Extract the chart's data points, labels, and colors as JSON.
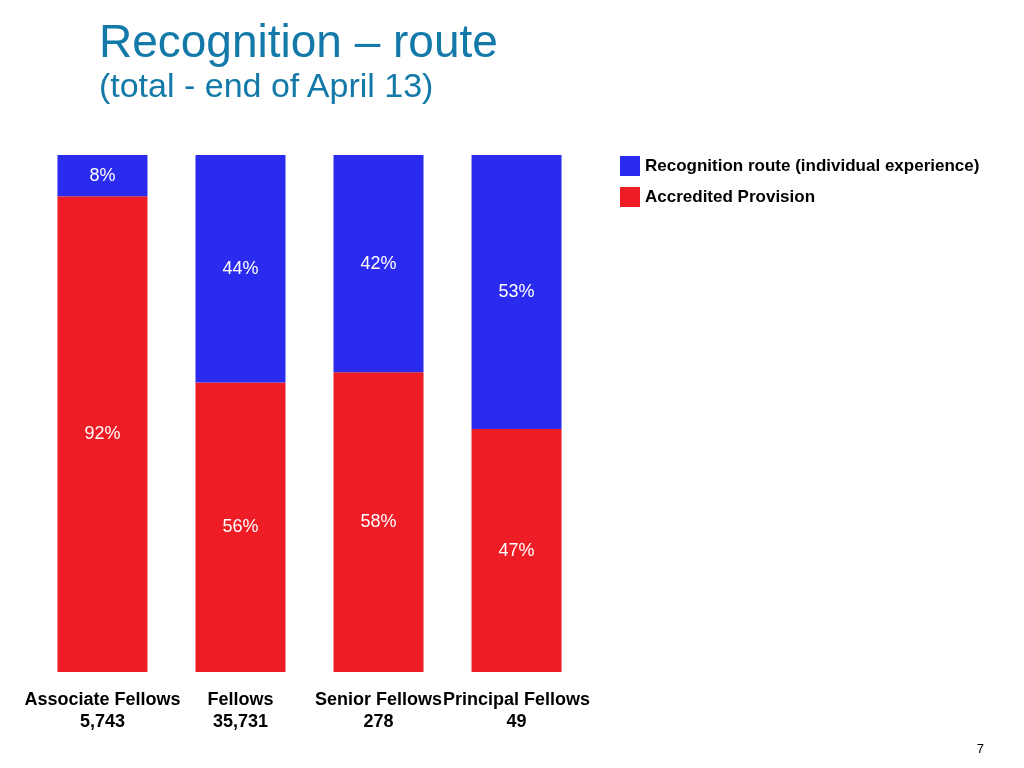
{
  "chart_data": {
    "type": "bar",
    "title": "Recognition – route",
    "subtitle": "(total - end of April 13)",
    "categories": [
      "Associate Fellows\n5,743",
      "Fellows\n35,731",
      "Senior Fellows\n278",
      "Principal Fellows\n49"
    ],
    "series": [
      {
        "name": "Accredited Provision",
        "color": "#ee1c25",
        "values": [
          92,
          56,
          58,
          47
        ],
        "value_labels": [
          "92%",
          "56%",
          "58%",
          "47%"
        ]
      },
      {
        "name": "Recognition route (individual experience)",
        "color": "#2b2bf0",
        "values": [
          8,
          44,
          42,
          53
        ],
        "value_labels": [
          "8%",
          "44%",
          "42%",
          "53%"
        ]
      }
    ],
    "stacked": true,
    "tick_labels": "x",
    "legend": "right",
    "annotations": [
      "7"
    ]
  }
}
